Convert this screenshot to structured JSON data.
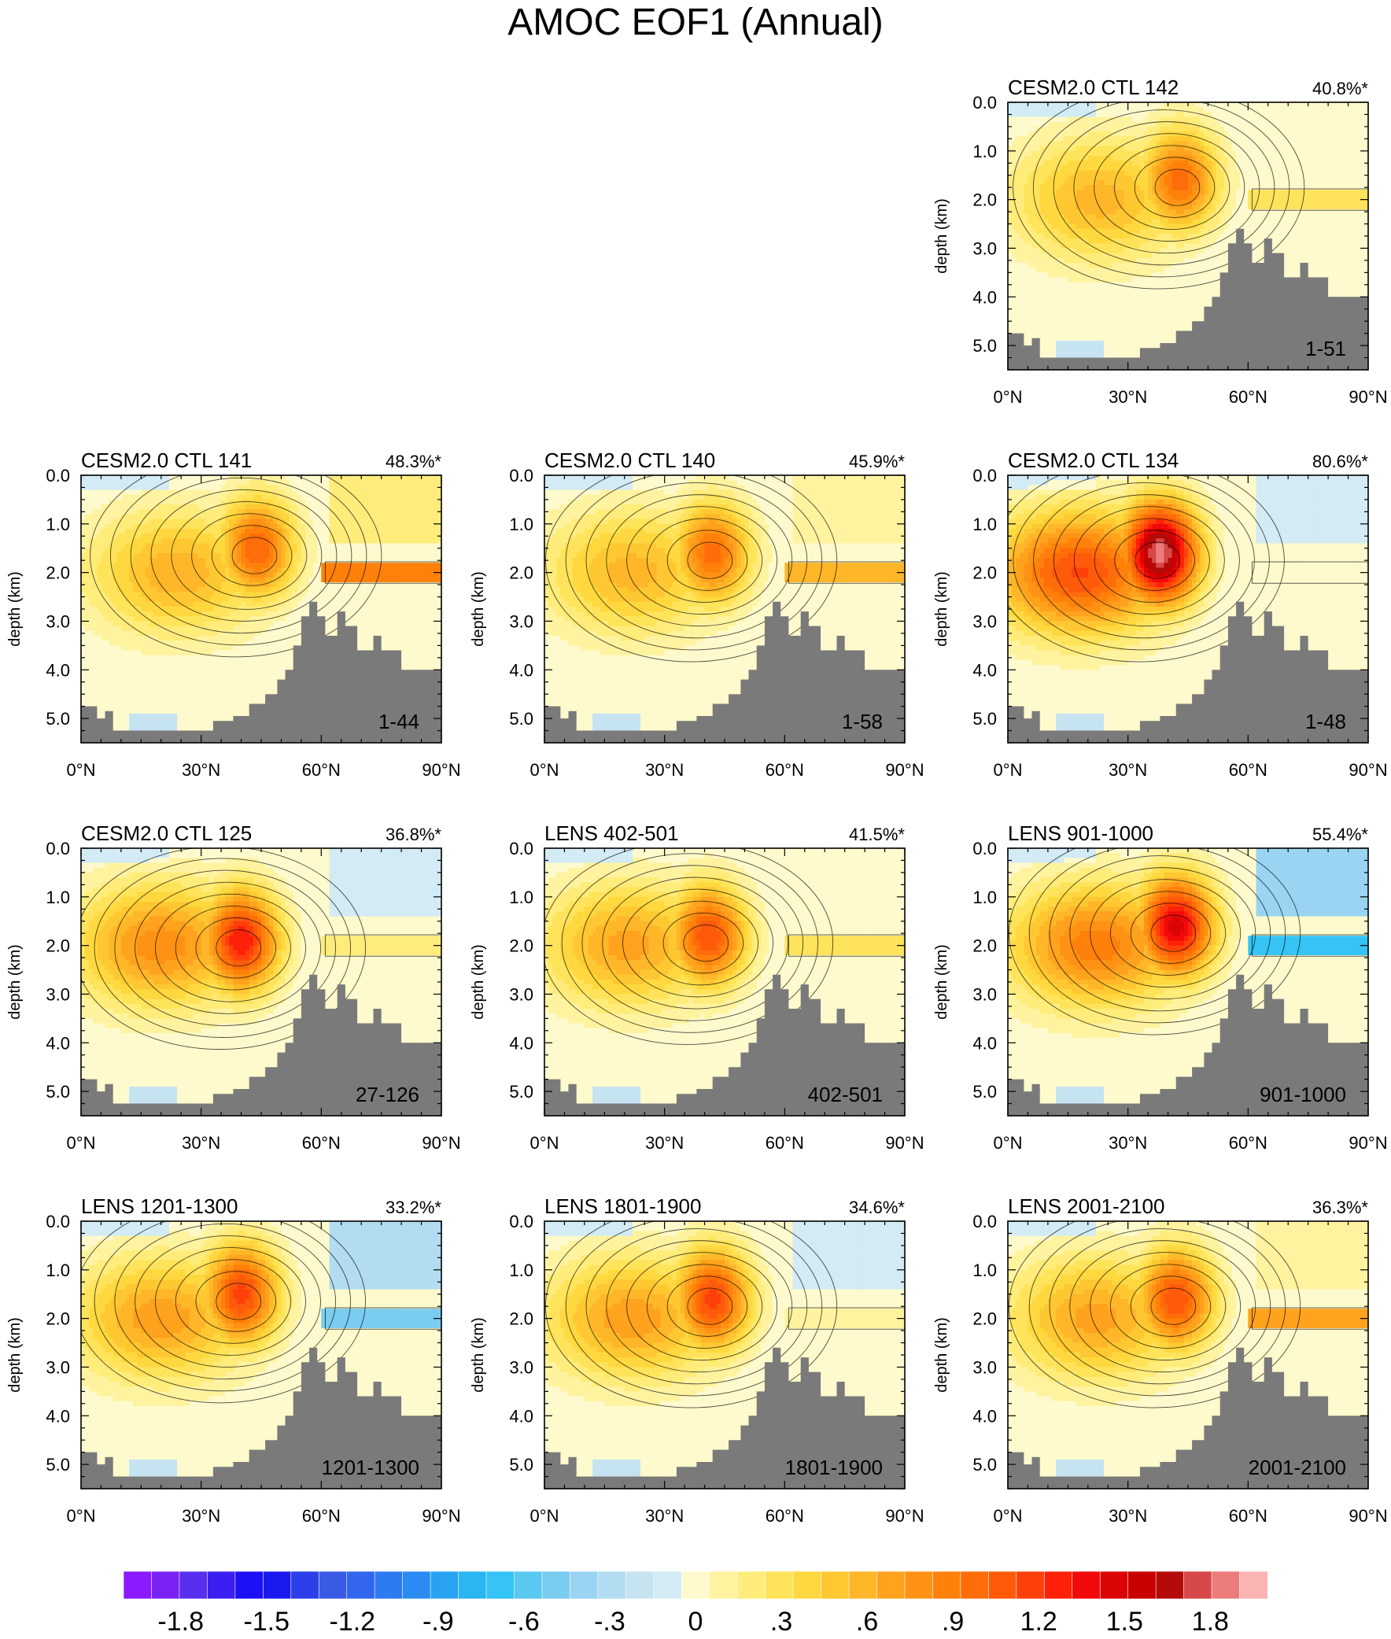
{
  "title": "AMOC EOF1 (Annual)",
  "colors": {
    "land": "#7a7a7a",
    "contour": "#000000"
  },
  "chart_data": {
    "type": "contour",
    "variable": "AMOC EOF1 (Annual)",
    "xlabel": "",
    "ylabel": "depth (km)",
    "xlim": [
      0,
      90
    ],
    "ylim": [
      0,
      5.5
    ],
    "x_ticks": [
      "0°N",
      "30°N",
      "60°N",
      "90°N"
    ],
    "y_ticks": [
      "0.0",
      "1.0",
      "2.0",
      "3.0",
      "4.0",
      "5.0"
    ],
    "panels": [
      {
        "id": "ctl142",
        "title": "CESM2.0 CTL 142",
        "variance": "40.8%*",
        "years": "1-51",
        "max_amp": 1.05,
        "max_lat": 43,
        "max_depth": 1.6,
        "band": 0.3
      },
      {
        "id": "ctl141",
        "title": "CESM2.0 CTL 141",
        "variance": "48.3%*",
        "years": "1-44",
        "max_amp": 1.1,
        "max_lat": 44,
        "max_depth": 1.5,
        "band": 0.9
      },
      {
        "id": "ctl140",
        "title": "CESM2.0 CTL 140",
        "variance": "45.9%*",
        "years": "1-58",
        "max_amp": 1.05,
        "max_lat": 42,
        "max_depth": 1.6,
        "band": 0.6
      },
      {
        "id": "ctl134",
        "title": "CESM2.0 CTL 134",
        "variance": "80.6%*",
        "years": "1-48",
        "max_amp": 1.95,
        "max_lat": 38,
        "max_depth": 1.6,
        "band": 0.0
      },
      {
        "id": "ctl125",
        "title": "CESM2.0 CTL 125",
        "variance": "36.8%*",
        "years": "27-126",
        "max_amp": 1.4,
        "max_lat": 40,
        "max_depth": 1.9,
        "band": 0.2
      },
      {
        "id": "lens402",
        "title": "LENS 402-501",
        "variance": "41.5%*",
        "years": "402-501",
        "max_amp": 1.2,
        "max_lat": 41,
        "max_depth": 1.8,
        "band": 0.3
      },
      {
        "id": "lens901",
        "title": "LENS 901-1000",
        "variance": "55.4%*",
        "years": "901-1000",
        "max_amp": 1.55,
        "max_lat": 42,
        "max_depth": 1.6,
        "band": -0.7
      },
      {
        "id": "lens1201",
        "title": "LENS 1201-1300",
        "variance": "33.2%*",
        "years": "1201-1300",
        "max_amp": 1.25,
        "max_lat": 40,
        "max_depth": 1.5,
        "band": -0.5
      },
      {
        "id": "lens1801",
        "title": "LENS 1801-1900",
        "variance": "34.6%*",
        "years": "1801-1900",
        "max_amp": 1.25,
        "max_lat": 42,
        "max_depth": 1.6,
        "band": 0.1
      },
      {
        "id": "lens2001",
        "title": "LENS 2001-2100",
        "variance": "36.3%*",
        "years": "2001-2100",
        "max_amp": 1.2,
        "max_lat": 42,
        "max_depth": 1.6,
        "band": 0.75
      }
    ],
    "colorbar": {
      "levels": [
        -2.0,
        -1.9,
        -1.8,
        -1.7,
        -1.6,
        -1.5,
        -1.4,
        -1.3,
        -1.2,
        -1.1,
        -1.0,
        -0.9,
        -0.8,
        -0.7,
        -0.6,
        -0.5,
        -0.4,
        -0.3,
        -0.2,
        -0.1,
        0.0,
        0.1,
        0.2,
        0.3,
        0.4,
        0.5,
        0.6,
        0.7,
        0.8,
        0.9,
        1.0,
        1.1,
        1.2,
        1.3,
        1.4,
        1.5,
        1.6,
        1.7,
        1.8,
        1.9,
        2.0
      ],
      "labels": [
        {
          "value": -1.8,
          "text": "-1.8"
        },
        {
          "value": -1.5,
          "text": "-1.5"
        },
        {
          "value": -1.2,
          "text": "-1.2"
        },
        {
          "value": -0.9,
          "text": "-.9"
        },
        {
          "value": -0.6,
          "text": "-.6"
        },
        {
          "value": -0.3,
          "text": "-.3"
        },
        {
          "value": 0.0,
          "text": "0"
        },
        {
          "value": 0.3,
          "text": ".3"
        },
        {
          "value": 0.6,
          "text": ".6"
        },
        {
          "value": 0.9,
          "text": ".9"
        },
        {
          "value": 1.2,
          "text": "1.2"
        },
        {
          "value": 1.5,
          "text": "1.5"
        },
        {
          "value": 1.8,
          "text": "1.8"
        }
      ],
      "colors": [
        "#8c1aff",
        "#7a22f5",
        "#5a2ef0",
        "#3b1ff2",
        "#1e10f5",
        "#1a1af0",
        "#2b40e8",
        "#3a5ae6",
        "#3366ee",
        "#2e7af0",
        "#2a8cf2",
        "#2aa2f2",
        "#2ab6f2",
        "#35c4f5",
        "#5ac8f0",
        "#7accf0",
        "#9ad4f2",
        "#b2dcf2",
        "#c6e3f2",
        "#d2ebf4",
        "#fffacd",
        "#fff3a0",
        "#ffec7a",
        "#ffe35a",
        "#ffd840",
        "#ffc832",
        "#ffb628",
        "#ffa21e",
        "#ff9214",
        "#ff800a",
        "#ff6c0a",
        "#ff5a0a",
        "#ff400a",
        "#ff200a",
        "#f20a0a",
        "#dc0505",
        "#c80000",
        "#b40a0a",
        "#d74848",
        "#ec7c7c",
        "#fbb4b4"
      ]
    }
  }
}
